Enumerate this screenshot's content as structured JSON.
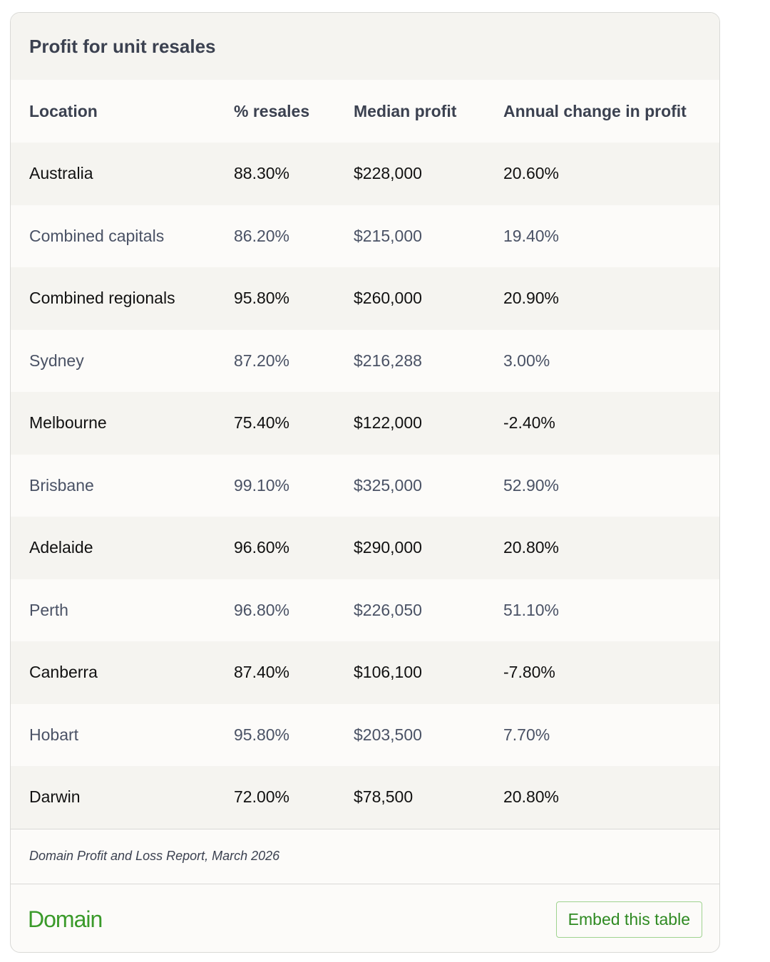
{
  "header": {
    "title": "Profit for unit resales"
  },
  "table": {
    "columns": [
      "Location",
      "% resales",
      "Median profit",
      "Annual change in profit"
    ],
    "rows": [
      [
        "Australia",
        "88.30%",
        "$228,000",
        "20.60%"
      ],
      [
        "Combined capitals",
        "86.20%",
        "$215,000",
        "19.40%"
      ],
      [
        "Combined regionals",
        "95.80%",
        "$260,000",
        "20.90%"
      ],
      [
        "Sydney",
        "87.20%",
        "$216,288",
        "3.00%"
      ],
      [
        "Melbourne",
        "75.40%",
        "$122,000",
        "-2.40%"
      ],
      [
        "Brisbane",
        "99.10%",
        "$325,000",
        "52.90%"
      ],
      [
        "Adelaide",
        "96.60%",
        "$290,000",
        "20.80%"
      ],
      [
        "Perth",
        "96.80%",
        "$226,050",
        "51.10%"
      ],
      [
        "Canberra",
        "87.40%",
        "$106,100",
        "-7.80%"
      ],
      [
        "Hobart",
        "95.80%",
        "$203,500",
        "7.70%"
      ],
      [
        "Darwin",
        "72.00%",
        "$78,500",
        "20.80%"
      ]
    ]
  },
  "source": "Domain Profit and Loss Report, March 2026",
  "footer": {
    "logo": "Domain",
    "button": "Embed this table"
  }
}
